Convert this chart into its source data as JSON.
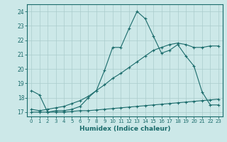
{
  "xlabel": "Humidex (Indice chaleur)",
  "bg_color": "#cce8e8",
  "grid_color": "#aacccc",
  "line_color": "#1a6b6b",
  "xlim": [
    -0.5,
    23.5
  ],
  "ylim": [
    16.7,
    24.5
  ],
  "xticks": [
    0,
    1,
    2,
    3,
    4,
    5,
    6,
    7,
    8,
    9,
    10,
    11,
    12,
    13,
    14,
    15,
    16,
    17,
    18,
    19,
    20,
    21,
    22,
    23
  ],
  "yticks": [
    17,
    18,
    19,
    20,
    21,
    22,
    23,
    24
  ],
  "line1_x": [
    0,
    1,
    2,
    3,
    4,
    5,
    6,
    7,
    8,
    9,
    10,
    11,
    12,
    13,
    14,
    15,
    16,
    17,
    18,
    19,
    20,
    21,
    22,
    23
  ],
  "line1_y": [
    18.5,
    18.2,
    17.0,
    17.1,
    17.1,
    17.2,
    17.4,
    18.0,
    18.5,
    19.9,
    21.5,
    21.5,
    22.8,
    24.0,
    23.5,
    22.3,
    21.1,
    21.3,
    21.7,
    20.9,
    20.2,
    18.4,
    17.5,
    17.5
  ],
  "line2_x": [
    0,
    1,
    2,
    3,
    4,
    5,
    6,
    7,
    8,
    9,
    10,
    11,
    12,
    13,
    14,
    15,
    16,
    17,
    18,
    19,
    20,
    21,
    22,
    23
  ],
  "line2_y": [
    17.0,
    17.0,
    17.0,
    17.0,
    17.0,
    17.05,
    17.1,
    17.1,
    17.15,
    17.2,
    17.25,
    17.3,
    17.35,
    17.4,
    17.45,
    17.5,
    17.55,
    17.6,
    17.65,
    17.7,
    17.75,
    17.8,
    17.85,
    17.9
  ],
  "line3_x": [
    0,
    1,
    2,
    3,
    4,
    5,
    6,
    7,
    8,
    9,
    10,
    11,
    12,
    13,
    14,
    15,
    16,
    17,
    18,
    19,
    20,
    21,
    22,
    23
  ],
  "line3_y": [
    17.2,
    17.1,
    17.2,
    17.3,
    17.4,
    17.6,
    17.8,
    18.1,
    18.5,
    18.9,
    19.35,
    19.7,
    20.1,
    20.5,
    20.9,
    21.3,
    21.5,
    21.7,
    21.8,
    21.7,
    21.5,
    21.5,
    21.6,
    21.6
  ]
}
